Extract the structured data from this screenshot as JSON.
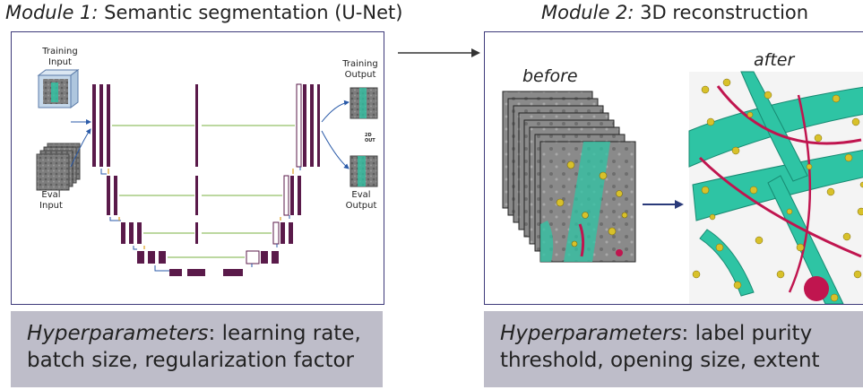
{
  "module1": {
    "title_prefix": "Module 1:",
    "title_rest": "Semantic segmentation (U-Net)",
    "labels": {
      "training_input": [
        "Training",
        "Input"
      ],
      "eval_input": [
        "Eval",
        "Input"
      ],
      "training_output": [
        "Training",
        "Output"
      ],
      "eval_output": [
        "Eval",
        "Output"
      ],
      "out_2d": "2D OUT"
    },
    "hyperparameters_label": "Hyperparameters",
    "hyperparameters_line1": ": learning rate,",
    "hyperparameters_line2": "batch size, regularization factor"
  },
  "module2": {
    "title_prefix": "Module 2:",
    "title_rest": "3D reconstruction",
    "before_label": "before",
    "after_label": "after",
    "hyperparameters_label": "Hyperparameters",
    "hyperparameters_line1": ": label purity",
    "hyperparameters_line2": "threshold, opening size, extent"
  },
  "colors": {
    "unet_block": "#5a1a4a",
    "skip_arrow": "#7ab040",
    "panel_border": "#3e3a7a",
    "hyper_bg": "#bebdc9",
    "membrane_cyan": "#2ec4a4",
    "vesicle_yellow": "#d8c12a",
    "filament_magenta": "#c0154f"
  }
}
